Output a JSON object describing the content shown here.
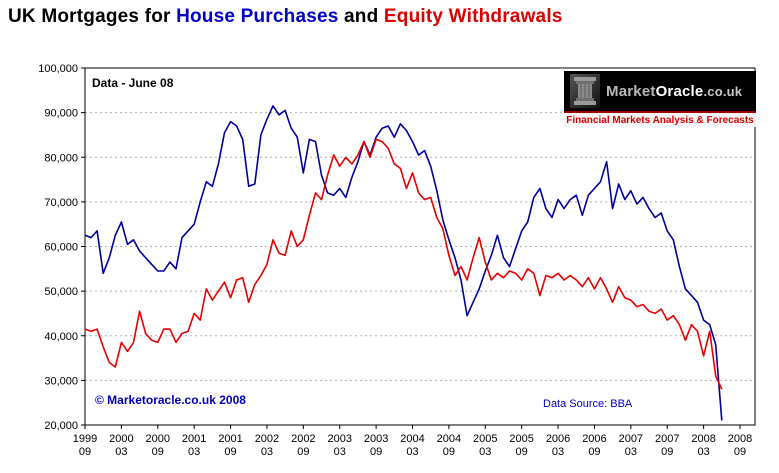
{
  "title": {
    "part1": "UK Mortgages for ",
    "part2": "House Purchases",
    "part3": " and ",
    "part4": "Equity Withdrawals"
  },
  "annotations": {
    "data_note": "Data - June 08",
    "copyright": "© Marketoracle.co.uk 2008",
    "data_source": "Data Source: BBA"
  },
  "logo": {
    "market": "Market",
    "oracle": "Oracle",
    "suffix": ".co.uk",
    "tagline": "Financial Markets Analysis & Forecasts",
    "icon": "column-icon"
  },
  "colors": {
    "title_blue": "#0000cc",
    "title_red": "#dd0000",
    "annotation_blue": "#0000bb",
    "grid": "#b0b0b0",
    "series_blue": "#00009a",
    "series_red": "#e60000"
  },
  "chart_data": {
    "type": "line",
    "title": "UK Mortgages for House Purchases and Equity Withdrawals",
    "xlabel": "",
    "ylabel": "",
    "x_start": "1999-09",
    "x_end": "2008-06",
    "x_interval": "monthly",
    "ylim": [
      20000,
      100000
    ],
    "y_tick_step": 10000,
    "y_tick_labels": [
      "100,000",
      "90,000",
      "80,000",
      "70,000",
      "60,000",
      "50,000",
      "40,000",
      "30,000",
      "20,000"
    ],
    "grid": "horizontal-dotted",
    "legend_position": "none",
    "x_tick_labels": [
      [
        "1999",
        "09"
      ],
      [
        "2000",
        "03"
      ],
      [
        "2000",
        "09"
      ],
      [
        "2001",
        "03"
      ],
      [
        "2001",
        "09"
      ],
      [
        "2002",
        "03"
      ],
      [
        "2002",
        "09"
      ],
      [
        "2003",
        "03"
      ],
      [
        "2003",
        "09"
      ],
      [
        "2004",
        "03"
      ],
      [
        "2004",
        "09"
      ],
      [
        "2005",
        "03"
      ],
      [
        "2005",
        "09"
      ],
      [
        "2006",
        "03"
      ],
      [
        "2006",
        "09"
      ],
      [
        "2007",
        "03"
      ],
      [
        "2007",
        "09"
      ],
      [
        "2008",
        "03"
      ],
      [
        "2008",
        "09"
      ]
    ],
    "series": [
      {
        "name": "House Purchases",
        "color": "#00009a",
        "values": [
          62500,
          62000,
          63500,
          54000,
          57500,
          62500,
          65500,
          60500,
          61500,
          59000,
          57500,
          56000,
          54500,
          54500,
          56500,
          55000,
          62000,
          63500,
          65000,
          70000,
          74500,
          73500,
          78500,
          85500,
          88000,
          87000,
          84000,
          73500,
          74000,
          85000,
          88500,
          91500,
          89500,
          90500,
          86500,
          84500,
          76500,
          84000,
          83500,
          76000,
          72000,
          71500,
          73000,
          71000,
          75500,
          79000,
          83500,
          80500,
          84500,
          86500,
          87000,
          84500,
          87500,
          86000,
          83500,
          80500,
          81500,
          78000,
          72500,
          66000,
          61500,
          57500,
          52500,
          44500,
          47500,
          50500,
          54500,
          58000,
          62500,
          57500,
          55500,
          59500,
          63500,
          65500,
          71000,
          73000,
          68500,
          66500,
          70500,
          68500,
          70500,
          71500,
          67000,
          71500,
          73000,
          74500,
          79000,
          68500,
          74000,
          70500,
          72500,
          69500,
          71000,
          68500,
          66500,
          67500,
          63500,
          61500,
          55500,
          50500,
          49000,
          47500,
          43500,
          42500,
          38000,
          21000
        ]
      },
      {
        "name": "Equity Withdrawals",
        "color": "#e60000",
        "values": [
          41500,
          41000,
          41500,
          37500,
          34000,
          33000,
          38500,
          36500,
          38500,
          45500,
          40500,
          39000,
          38500,
          41500,
          41500,
          38500,
          40500,
          41000,
          45000,
          43500,
          50500,
          48000,
          50000,
          52000,
          48500,
          52500,
          53000,
          47500,
          51500,
          53500,
          56000,
          61500,
          58500,
          58000,
          63500,
          60000,
          61500,
          67000,
          72000,
          70500,
          76000,
          80500,
          78000,
          80000,
          78500,
          80500,
          83500,
          80000,
          84000,
          83500,
          82000,
          78500,
          77500,
          73000,
          76500,
          72000,
          70500,
          71000,
          66500,
          64000,
          58000,
          53500,
          55500,
          52500,
          57500,
          62000,
          56500,
          52500,
          54000,
          53000,
          54500,
          54000,
          52500,
          55000,
          54000,
          49000,
          53500,
          53000,
          54000,
          52500,
          53500,
          52500,
          51000,
          53000,
          50500,
          53000,
          50500,
          47500,
          51000,
          48500,
          48000,
          46500,
          47000,
          45500,
          45000,
          46000,
          43500,
          44500,
          42500,
          39000,
          42500,
          41000,
          35500,
          41000,
          31000,
          28000
        ]
      }
    ]
  }
}
